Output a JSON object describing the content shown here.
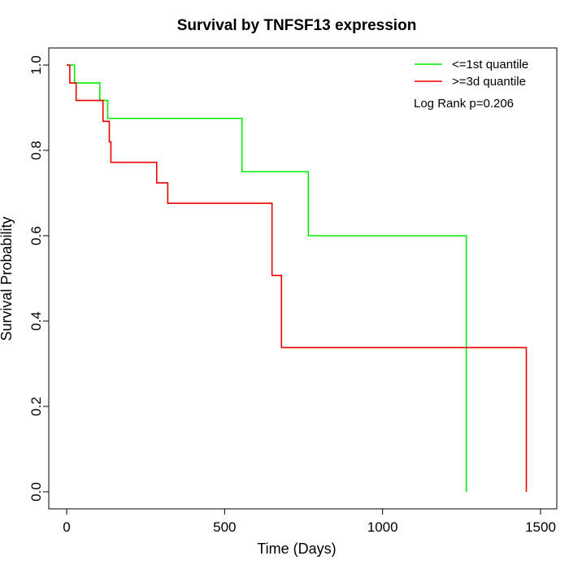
{
  "chart_data": {
    "type": "line",
    "subtype": "step",
    "title": "Survival by TNFSF13 expression",
    "xlabel": "Time (Days)",
    "ylabel": "Survival Probability",
    "xlim": [
      0,
      1500
    ],
    "ylim": [
      0,
      1
    ],
    "x_ticks": [
      0,
      500,
      1000,
      1500
    ],
    "y_ticks": [
      0.0,
      0.2,
      0.4,
      0.6,
      0.8,
      1.0
    ],
    "x_tick_labels": [
      "0",
      "500",
      "1000",
      "1500"
    ],
    "y_tick_labels": [
      "0.0",
      "0.2",
      "0.4",
      "0.6",
      "0.8",
      "1.0"
    ],
    "grid": false,
    "legend_position": "top-right",
    "annotation": "Log Rank p=0.206",
    "series": [
      {
        "name": "<=1st quantile",
        "color": "#00ee00",
        "x": [
          0,
          25,
          105,
          130,
          555,
          765,
          1265
        ],
        "y": [
          1.0,
          0.958,
          0.917,
          0.875,
          0.75,
          0.6,
          0.0
        ]
      },
      {
        "name": ">=3d quantile",
        "color": "#ee0000",
        "x": [
          0,
          10,
          30,
          115,
          135,
          140,
          285,
          320,
          650,
          680,
          1455
        ],
        "y": [
          1.0,
          0.958,
          0.917,
          0.868,
          0.82,
          0.772,
          0.724,
          0.676,
          0.507,
          0.338,
          0.0
        ]
      }
    ]
  }
}
